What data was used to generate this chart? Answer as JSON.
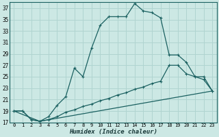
{
  "xlabel": "Humidex (Indice chaleur)",
  "bg_color": "#cce8e4",
  "grid_color": "#b0d4d0",
  "line_color": "#1a6060",
  "xlim": [
    -0.5,
    23.5
  ],
  "ylim": [
    17,
    38
  ],
  "yticks": [
    17,
    19,
    21,
    23,
    25,
    27,
    29,
    31,
    33,
    35,
    37
  ],
  "xticks": [
    0,
    1,
    2,
    3,
    4,
    5,
    6,
    7,
    8,
    9,
    10,
    11,
    12,
    13,
    14,
    15,
    16,
    17,
    18,
    19,
    20,
    21,
    22,
    23
  ],
  "curve1_x": [
    0,
    1,
    2,
    3,
    4,
    5,
    6,
    7,
    8,
    9,
    10,
    11,
    12,
    13,
    14,
    15,
    16,
    17,
    18,
    19,
    20,
    21,
    22,
    23
  ],
  "curve1_y": [
    19,
    19,
    17.5,
    17.2,
    18,
    20,
    21.5,
    26.5,
    25,
    30,
    34,
    35.5,
    35.5,
    35.5,
    37.8,
    36.5,
    36.2,
    35.3,
    28.8,
    28.8,
    27.5,
    25,
    25,
    22.5
  ],
  "curve2_x": [
    0,
    1,
    2,
    3,
    4,
    5,
    6,
    7,
    8,
    9,
    10,
    11,
    12,
    13,
    14,
    15,
    16,
    17,
    18,
    19,
    20,
    21,
    22,
    23
  ],
  "curve2_y": [
    19,
    19,
    17.5,
    17.2,
    17.5,
    18.0,
    18.8,
    19.2,
    19.8,
    20.2,
    20.8,
    21.2,
    21.8,
    22.2,
    22.8,
    23.2,
    23.8,
    24.2,
    27.0,
    27.0,
    25.5,
    25.0,
    24.5,
    22.5
  ],
  "curve3_x": [
    0,
    3,
    23
  ],
  "curve3_y": [
    19,
    17.2,
    22.5
  ]
}
